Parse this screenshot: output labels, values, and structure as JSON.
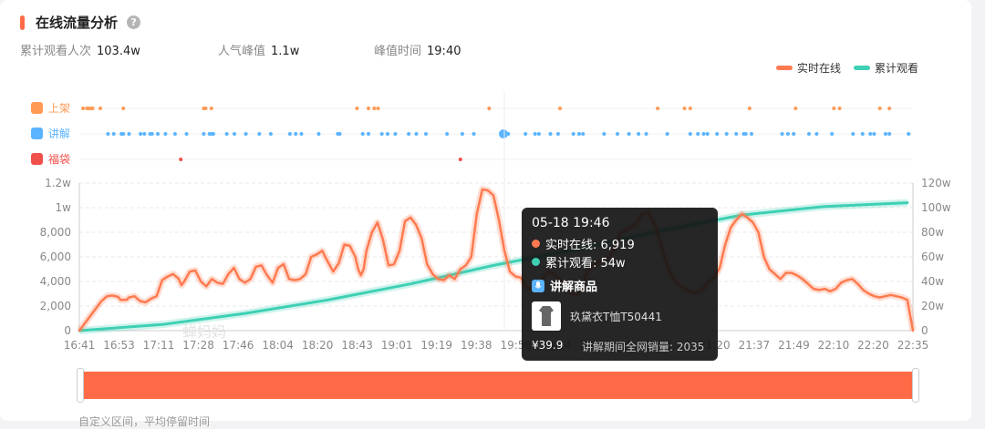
{
  "header": {
    "title": "在线流量分析",
    "help_icon": "question-circle-icon"
  },
  "stats": [
    {
      "label": "累计观看人次",
      "value": "103.4w"
    },
    {
      "label": "人气峰值",
      "value": "1.1w"
    },
    {
      "label": "峰值时间",
      "value": "19:40"
    }
  ],
  "legend": [
    {
      "label": "实时在线",
      "color": "#ff7a50"
    },
    {
      "label": "累计观看",
      "color": "#3ed0b4"
    }
  ],
  "event_rows": [
    {
      "label": "上架",
      "color": "#ff9a55",
      "icon": "cart-icon"
    },
    {
      "label": "讲解",
      "color": "#5ab4ff",
      "icon": "microphone-icon"
    },
    {
      "label": "福袋",
      "color": "#f0504a",
      "icon": "lucky-bag-icon"
    }
  ],
  "watermark": "蝉妈妈",
  "tooltip": {
    "time": "05-18 19:46",
    "online_label": "实时在线: 6,919",
    "views_label": "累计观看: 54w",
    "section_title": "讲解商品",
    "product_name": "玖黛衣T恤T50441",
    "price": "¥39.9",
    "sales": "讲解期间全网销量: 2035"
  },
  "footer_text": "自定义区间，平均停留时间",
  "chart_data": {
    "type": "line",
    "x_ticks": [
      "16:41",
      "16:53",
      "17:11",
      "17:28",
      "17:46",
      "18:04",
      "18:20",
      "18:43",
      "19:01",
      "19:19",
      "19:38",
      "19:56",
      "20:14",
      "20:32",
      "20:50",
      "21:08",
      "21:20",
      "21:37",
      "21:49",
      "22:10",
      "22:20",
      "22:35"
    ],
    "left_axis": {
      "ticks": [
        "0",
        "2,000",
        "4,000",
        "6,000",
        "8,000",
        "1w",
        "1.2w"
      ],
      "range": [
        0,
        12000
      ]
    },
    "right_axis": {
      "ticks": [
        "0",
        "20w",
        "40w",
        "60w",
        "80w",
        "100w",
        "120w"
      ],
      "range": [
        0,
        1200000
      ]
    },
    "series": [
      {
        "name": "实时在线",
        "axis": "left",
        "color": "#ff7a50",
        "x": [
          0,
          2,
          5,
          8,
          10,
          12,
          14,
          15,
          17,
          18,
          20,
          21,
          22,
          24,
          26,
          28,
          30,
          32,
          34,
          36,
          37,
          38,
          40,
          42,
          44,
          46,
          48,
          50,
          52,
          54,
          56,
          58,
          60,
          62,
          64,
          66,
          68,
          70,
          72,
          74,
          76,
          78,
          80,
          82,
          84,
          86,
          88,
          90,
          92,
          94,
          96,
          98,
          100,
          101,
          102,
          103,
          104,
          106,
          108,
          110,
          112,
          114,
          116,
          118,
          120,
          122,
          124,
          126,
          128,
          130,
          132,
          134,
          136,
          138,
          140,
          142,
          144,
          146,
          148,
          150,
          152,
          154,
          156,
          158,
          160,
          162,
          164,
          166,
          168,
          170,
          172,
          174,
          176,
          178,
          180,
          182,
          184,
          186,
          188,
          190,
          192,
          194,
          196,
          198,
          200,
          202,
          204,
          206,
          208,
          210,
          212,
          214,
          216,
          218,
          220,
          222,
          224,
          226,
          228,
          230,
          232,
          234,
          236,
          238,
          240,
          242,
          244,
          246,
          248,
          250,
          252,
          254,
          256,
          258,
          260,
          262,
          264,
          266,
          268,
          270,
          272,
          274,
          276,
          278,
          280,
          282,
          284,
          286,
          288,
          290,
          292,
          294,
          296,
          298,
          300,
          302
        ],
        "y": [
          0,
          600,
          1500,
          2400,
          2800,
          2850,
          2750,
          2500,
          2500,
          2700,
          2800,
          2600,
          2400,
          2300,
          2600,
          2800,
          4100,
          4400,
          4600,
          4200,
          3700,
          4000,
          4800,
          4900,
          4000,
          3600,
          4200,
          3900,
          3800,
          4600,
          5100,
          4200,
          3900,
          4200,
          5200,
          5300,
          4500,
          3900,
          5100,
          5400,
          4200,
          4100,
          4200,
          4600,
          6000,
          6200,
          6500,
          5600,
          4800,
          5500,
          7000,
          6900,
          6000,
          5000,
          4500,
          5000,
          6500,
          8000,
          8800,
          7400,
          5300,
          5400,
          6500,
          8900,
          9200,
          8600,
          7500,
          5400,
          4600,
          4200,
          4100,
          4500,
          4200,
          5000,
          5300,
          6000,
          9500,
          11500,
          11400,
          11000,
          9000,
          6500,
          4800,
          4400,
          4300,
          3500,
          3400,
          3600,
          4300,
          4800,
          4600,
          4200,
          3800,
          3100,
          2900,
          3300,
          4800,
          5300,
          5600,
          5800,
          6000,
          6700,
          7900,
          8200,
          8400,
          8800,
          9500,
          9600,
          8900,
          7600,
          6000,
          4700,
          4000,
          3600,
          3300,
          3100,
          3100,
          3400,
          4000,
          4300,
          5100,
          7000,
          8400,
          9000,
          9500,
          9200,
          8800,
          8000,
          6000,
          5000,
          4600,
          4200,
          4700,
          4700,
          4500,
          4200,
          3800,
          3400,
          3300,
          3400,
          3200,
          3400,
          3900,
          4100,
          4200,
          3800,
          3300,
          3000,
          2800,
          2700,
          2800,
          2900,
          2800,
          2700,
          2500,
          0
        ]
      },
      {
        "name": "累计观看",
        "axis": "right",
        "color": "#3ed0b4",
        "x": [
          0,
          30,
          60,
          90,
          120,
          150,
          180,
          210,
          240,
          270,
          300
        ],
        "y": [
          0,
          50000,
          140000,
          250000,
          380000,
          530000,
          660000,
          810000,
          940000,
          1010000,
          1040000
        ]
      }
    ],
    "events": {
      "上架": [
        1,
        3,
        4,
        5,
        6,
        10,
        22,
        64,
        65,
        68,
        144,
        150,
        153,
        155,
        213,
        250,
        301,
        315,
        318,
        349,
        373,
        393,
        396,
        417,
        422
      ],
      "讲解": [
        14,
        17,
        21,
        22,
        25,
        31,
        33,
        36,
        37,
        40,
        44,
        49,
        55,
        64,
        67,
        68,
        69,
        76,
        80,
        86,
        93,
        99,
        109,
        112,
        115,
        124,
        134,
        135,
        147,
        150,
        157,
        160,
        164,
        171,
        175,
        180,
        191,
        199,
        205,
        223,
        232,
        237,
        239,
        245,
        249,
        257,
        260,
        262,
        273,
        280,
        286,
        291,
        295,
        306,
        318,
        322,
        325,
        327,
        332,
        337,
        342,
        346,
        347,
        350,
        366,
        369,
        372,
        380,
        384,
        392,
        403,
        408,
        412,
        414,
        420,
        422,
        432
      ],
      "福袋": [
        52,
        198
      ]
    },
    "highlight": {
      "x_time": "19:46",
      "online": 6919,
      "views": 540000
    }
  }
}
